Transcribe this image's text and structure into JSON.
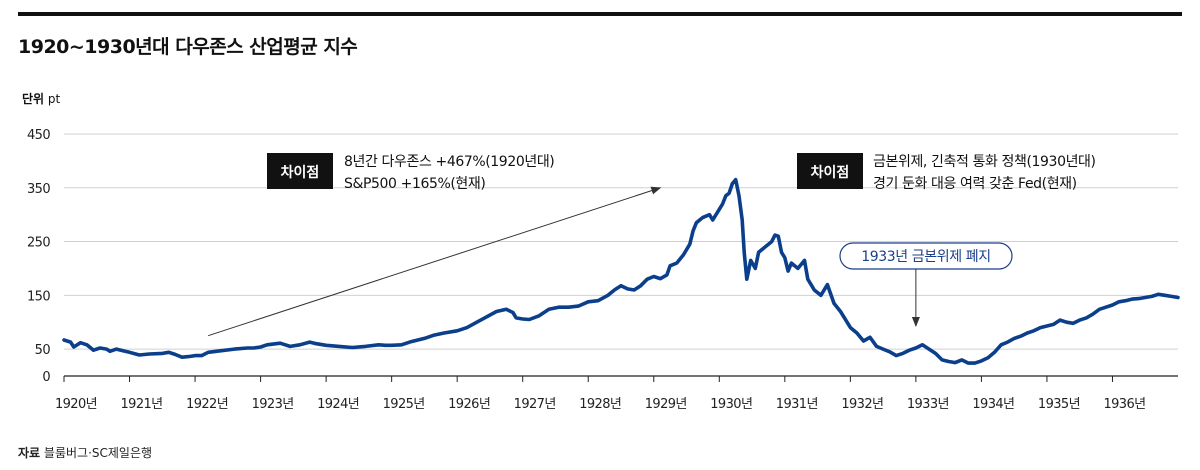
{
  "header": {
    "title": "1920~1930년대 다우존스 산업평균 지수"
  },
  "unit": {
    "label": "단위",
    "value": "pt"
  },
  "source": {
    "label": "자료",
    "value": "블룸버그·SC제일은행"
  },
  "colors": {
    "line": "#0b3f8c",
    "badge_bg": "#111111",
    "callout_border": "#1b3f8a"
  },
  "annotations": {
    "left": {
      "badge": "차이점",
      "lines": [
        "8년간 다우존스 +467%(1920년대)",
        "S&P500 +165%(현재)"
      ]
    },
    "right": {
      "badge": "차이점",
      "lines": [
        "금본위제, 긴축적 통화 정책(1930년대)",
        "경기 둔화 대응 여력 갖춘 Fed(현재)"
      ]
    },
    "callout": {
      "text": "1933년 금본위제 폐지",
      "year": 1933.0
    }
  },
  "chart_data": {
    "type": "line",
    "title": "1920~1930년대 다우존스 산업평균 지수",
    "xlabel": "",
    "ylabel": "단위 pt",
    "xlim": [
      1920.0,
      1937.0
    ],
    "ylim": [
      0,
      450
    ],
    "yticks": [
      0,
      50,
      150,
      250,
      350,
      450
    ],
    "xtick_labels": [
      "1920년",
      "1921년",
      "1922년",
      "1923년",
      "1924년",
      "1925년",
      "1926년",
      "1927년",
      "1928년",
      "1929년",
      "1930년",
      "1931년",
      "1932년",
      "1933년",
      "1934년",
      "1935년",
      "1936년"
    ],
    "xtick_values": [
      1920,
      1921,
      1922,
      1923,
      1924,
      1925,
      1926,
      1927,
      1928,
      1929,
      1930,
      1931,
      1932,
      1933,
      1934,
      1935,
      1936
    ],
    "grid": "horizontal",
    "trend_arrow": {
      "from": [
        1922.2,
        75
      ],
      "to": [
        1929.1,
        350
      ]
    },
    "series": [
      {
        "name": "다우존스 산업평균 지수",
        "points": [
          [
            1920.0,
            67
          ],
          [
            1920.1,
            63
          ],
          [
            1920.15,
            54
          ],
          [
            1920.25,
            62
          ],
          [
            1920.35,
            58
          ],
          [
            1920.45,
            48
          ],
          [
            1920.55,
            52
          ],
          [
            1920.65,
            50
          ],
          [
            1920.7,
            46
          ],
          [
            1920.8,
            50
          ],
          [
            1920.9,
            47
          ],
          [
            1921.0,
            44
          ],
          [
            1921.15,
            39
          ],
          [
            1921.3,
            41
          ],
          [
            1921.5,
            42
          ],
          [
            1921.6,
            44
          ],
          [
            1921.7,
            40
          ],
          [
            1921.8,
            35
          ],
          [
            1921.9,
            36
          ],
          [
            1922.0,
            38
          ],
          [
            1922.1,
            38
          ],
          [
            1922.2,
            44
          ],
          [
            1922.4,
            47
          ],
          [
            1922.6,
            50
          ],
          [
            1922.8,
            52
          ],
          [
            1922.9,
            52
          ],
          [
            1923.0,
            54
          ],
          [
            1923.1,
            58
          ],
          [
            1923.3,
            61
          ],
          [
            1923.45,
            55
          ],
          [
            1923.6,
            58
          ],
          [
            1923.75,
            63
          ],
          [
            1923.85,
            60
          ],
          [
            1924.0,
            57
          ],
          [
            1924.2,
            55
          ],
          [
            1924.4,
            53
          ],
          [
            1924.6,
            55
          ],
          [
            1924.8,
            58
          ],
          [
            1924.9,
            57
          ],
          [
            1925.0,
            57
          ],
          [
            1925.15,
            58
          ],
          [
            1925.3,
            64
          ],
          [
            1925.5,
            70
          ],
          [
            1925.65,
            76
          ],
          [
            1925.8,
            80
          ],
          [
            1926.0,
            84
          ],
          [
            1926.15,
            90
          ],
          [
            1926.3,
            100
          ],
          [
            1926.45,
            110
          ],
          [
            1926.6,
            120
          ],
          [
            1926.75,
            124
          ],
          [
            1926.85,
            118
          ],
          [
            1926.9,
            108
          ],
          [
            1927.0,
            106
          ],
          [
            1927.1,
            105
          ],
          [
            1927.25,
            112
          ],
          [
            1927.4,
            124
          ],
          [
            1927.55,
            128
          ],
          [
            1927.7,
            128
          ],
          [
            1927.85,
            130
          ],
          [
            1928.0,
            138
          ],
          [
            1928.15,
            140
          ],
          [
            1928.3,
            150
          ],
          [
            1928.4,
            160
          ],
          [
            1928.5,
            168
          ],
          [
            1928.6,
            162
          ],
          [
            1928.7,
            160
          ],
          [
            1928.8,
            168
          ],
          [
            1928.9,
            180
          ],
          [
            1929.0,
            185
          ],
          [
            1929.1,
            181
          ],
          [
            1929.2,
            188
          ],
          [
            1929.25,
            205
          ],
          [
            1929.35,
            210
          ],
          [
            1929.45,
            225
          ],
          [
            1929.55,
            245
          ],
          [
            1929.6,
            270
          ],
          [
            1929.65,
            285
          ],
          [
            1929.75,
            295
          ],
          [
            1929.85,
            300
          ],
          [
            1929.9,
            290
          ],
          [
            1929.95,
            300
          ],
          [
            1930.0,
            310
          ],
          [
            1930.05,
            320
          ],
          [
            1930.1,
            335
          ],
          [
            1930.15,
            340
          ],
          [
            1930.2,
            358
          ],
          [
            1930.25,
            365
          ],
          [
            1930.3,
            335
          ],
          [
            1930.35,
            290
          ],
          [
            1930.38,
            230
          ],
          [
            1930.42,
            180
          ],
          [
            1930.48,
            215
          ],
          [
            1930.55,
            200
          ],
          [
            1930.6,
            230
          ],
          [
            1930.7,
            240
          ],
          [
            1930.8,
            250
          ],
          [
            1930.85,
            262
          ],
          [
            1930.9,
            260
          ],
          [
            1930.95,
            230
          ],
          [
            1931.0,
            220
          ],
          [
            1931.05,
            195
          ],
          [
            1931.1,
            210
          ],
          [
            1931.2,
            200
          ],
          [
            1931.3,
            215
          ],
          [
            1931.35,
            180
          ],
          [
            1931.45,
            160
          ],
          [
            1931.55,
            150
          ],
          [
            1931.65,
            170
          ],
          [
            1931.75,
            135
          ],
          [
            1931.85,
            120
          ],
          [
            1931.95,
            100
          ],
          [
            1932.0,
            90
          ],
          [
            1932.1,
            80
          ],
          [
            1932.2,
            65
          ],
          [
            1932.3,
            72
          ],
          [
            1932.4,
            55
          ],
          [
            1932.5,
            50
          ],
          [
            1932.6,
            45
          ],
          [
            1932.7,
            38
          ],
          [
            1932.8,
            42
          ],
          [
            1932.9,
            48
          ],
          [
            1933.0,
            52
          ],
          [
            1933.1,
            58
          ],
          [
            1933.2,
            50
          ],
          [
            1933.3,
            42
          ],
          [
            1933.4,
            30
          ],
          [
            1933.5,
            27
          ],
          [
            1933.6,
            25
          ],
          [
            1933.7,
            30
          ],
          [
            1933.8,
            24
          ],
          [
            1933.9,
            24
          ],
          [
            1934.0,
            28
          ],
          [
            1934.1,
            34
          ],
          [
            1934.2,
            44
          ],
          [
            1934.3,
            58
          ],
          [
            1934.4,
            63
          ],
          [
            1934.5,
            70
          ],
          [
            1934.6,
            74
          ],
          [
            1934.7,
            80
          ],
          [
            1934.8,
            84
          ],
          [
            1934.9,
            90
          ],
          [
            1935.0,
            93
          ],
          [
            1935.1,
            96
          ],
          [
            1935.2,
            104
          ],
          [
            1935.3,
            100
          ],
          [
            1935.4,
            98
          ],
          [
            1935.5,
            104
          ],
          [
            1935.6,
            108
          ],
          [
            1935.7,
            115
          ],
          [
            1935.8,
            124
          ],
          [
            1935.9,
            128
          ],
          [
            1936.0,
            132
          ],
          [
            1936.1,
            138
          ],
          [
            1936.2,
            140
          ],
          [
            1936.3,
            143
          ],
          [
            1936.4,
            144
          ],
          [
            1936.5,
            146
          ],
          [
            1936.6,
            148
          ],
          [
            1936.7,
            152
          ],
          [
            1936.8,
            150
          ],
          [
            1936.9,
            148
          ],
          [
            1937.0,
            146
          ]
        ]
      }
    ]
  }
}
